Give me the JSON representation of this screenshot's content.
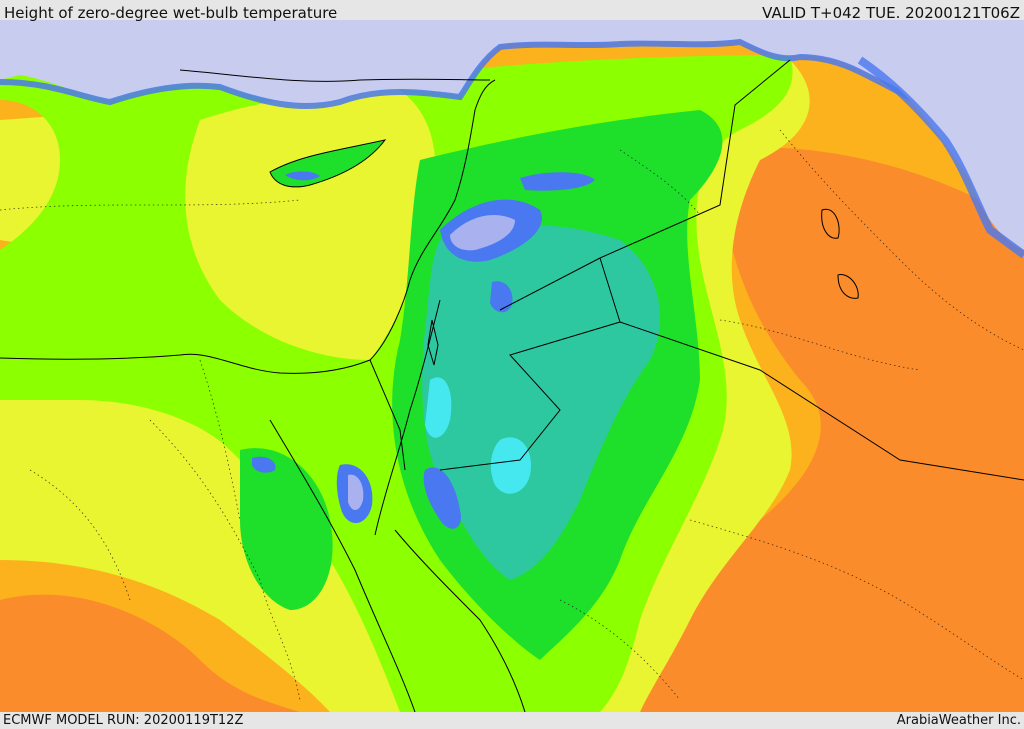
{
  "header": {
    "title": "Height of zero-degree wet-bulb temperature",
    "valid": "VALID T+042 TUE. 20200121T06Z"
  },
  "footer": {
    "model_run": "ECMWF MODEL RUN: 20200119T12Z",
    "credit": "ArabiaWeather Inc."
  },
  "palette": {
    "sea": "#c8cdf0",
    "lavender": "#a9b1ee",
    "blue": "#4a78f0",
    "cyan": "#46e8f0",
    "teal": "#2ec8a0",
    "green": "#1ee02a",
    "lime": "#8cff00",
    "yellow": "#e8f530",
    "light_orange": "#fcb21c",
    "orange": "#fb8c2c",
    "red_orange": "#fc5a1c"
  }
}
